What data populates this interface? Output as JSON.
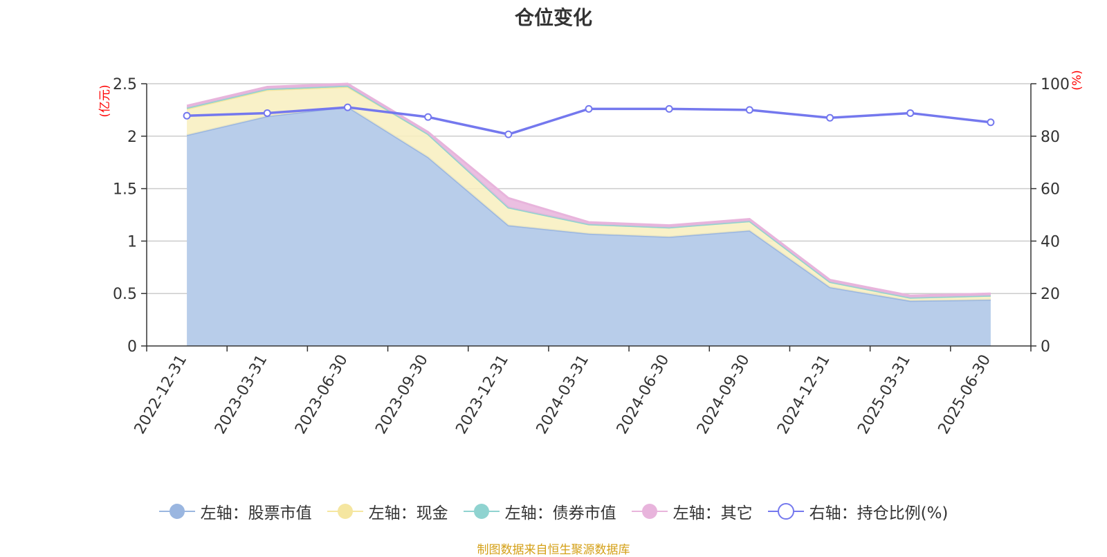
{
  "title": "仓位变化",
  "source_note": "制图数据来自恒生聚源数据库",
  "colors": {
    "stock": "#9ab6e0",
    "stock_fill": "#b8cdea",
    "cash": "#f5e6a0",
    "cash_fill": "#f8eebe",
    "bond": "#8fd3d0",
    "other": "#e8b4dc",
    "ratio": "#7478ee",
    "grid": "#cccccc",
    "axis": "#333333",
    "unit": "#ff0000",
    "source": "#d4a017"
  },
  "chart_data": {
    "type": "area",
    "title": "仓位变化",
    "x": [
      "2022-12-31",
      "2023-03-31",
      "2023-06-30",
      "2023-09-30",
      "2023-12-31",
      "2024-03-31",
      "2024-06-30",
      "2024-09-30",
      "2024-12-31",
      "2025-03-31",
      "2025-06-30"
    ],
    "left_axis": {
      "unit": "(亿元)",
      "ylim": [
        0,
        2.5
      ],
      "ticks": [
        "0",
        "0.5",
        "1",
        "1.5",
        "2",
        "2.5"
      ]
    },
    "right_axis": {
      "unit": "(%)",
      "ylim": [
        0,
        100
      ],
      "ticks": [
        "0",
        "20",
        "40",
        "60",
        "80",
        "100"
      ]
    },
    "stacked": true,
    "series": [
      {
        "name": "左轴：股票市值",
        "axis": "left",
        "type": "area",
        "values": [
          2.01,
          2.19,
          2.28,
          1.8,
          1.15,
          1.07,
          1.04,
          1.1,
          0.56,
          0.43,
          0.44
        ]
      },
      {
        "name": "左轴：现金",
        "axis": "left",
        "type": "area",
        "values": [
          0.25,
          0.25,
          0.19,
          0.22,
          0.17,
          0.09,
          0.09,
          0.09,
          0.05,
          0.03,
          0.04
        ]
      },
      {
        "name": "左轴：债券市值",
        "axis": "left",
        "type": "area",
        "values": [
          0.01,
          0.01,
          0.01,
          0.0,
          0.0,
          0.0,
          0.0,
          0.0,
          0.0,
          0.0,
          0.0
        ]
      },
      {
        "name": "左轴：其它",
        "axis": "left",
        "type": "area",
        "values": [
          0.02,
          0.02,
          0.02,
          0.02,
          0.09,
          0.02,
          0.02,
          0.02,
          0.02,
          0.02,
          0.02
        ]
      },
      {
        "name": "右轴：持仓比例(%)",
        "axis": "right",
        "type": "line",
        "values": [
          87.8,
          88.8,
          91.0,
          87.3,
          80.7,
          90.4,
          90.4,
          90.0,
          87.0,
          88.8,
          85.3
        ]
      }
    ],
    "grid": true,
    "legend": "bottom"
  }
}
